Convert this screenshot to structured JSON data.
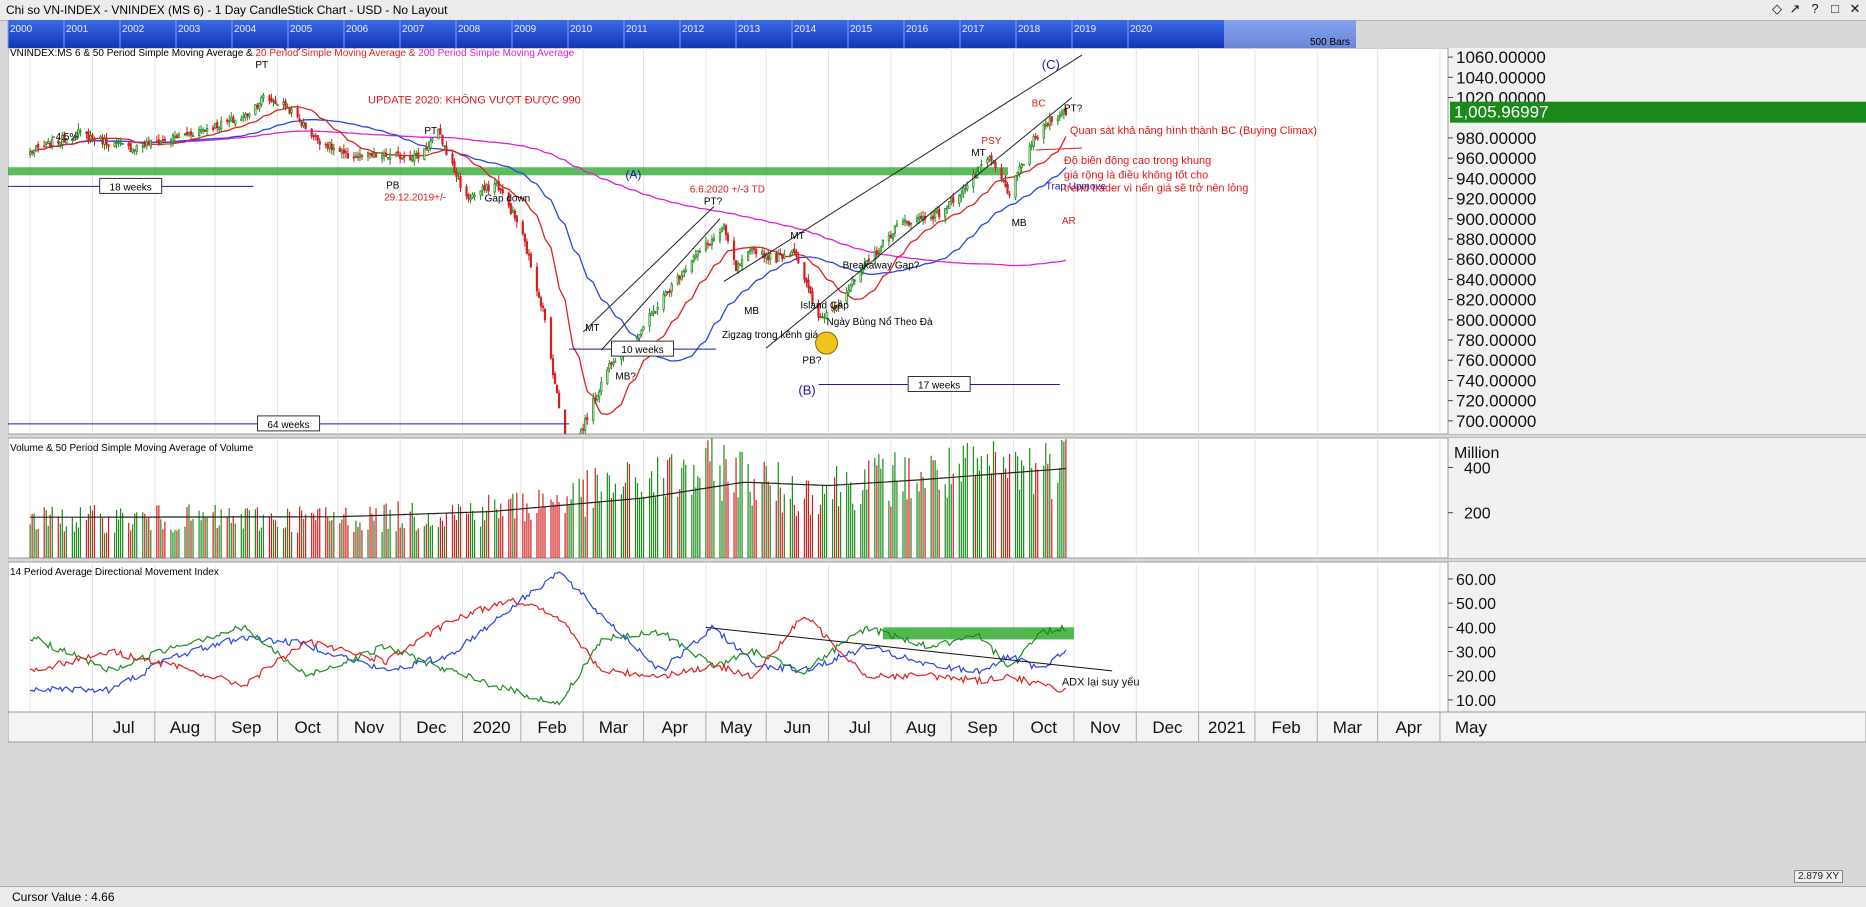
{
  "window": {
    "title": "Chi so VN-INDEX - VNINDEX (MS 6) - 1 Day CandleStick Chart - USD - No Layout",
    "controls": [
      "◇",
      "↗",
      "?",
      "□",
      "✕"
    ]
  },
  "navigator": {
    "years": [
      "2000",
      "2001",
      "2002",
      "2003",
      "2004",
      "2005",
      "2006",
      "2007",
      "2008",
      "2009",
      "2010",
      "2011",
      "2012",
      "2013",
      "2014",
      "2015",
      "2016",
      "2017",
      "2018",
      "2019",
      "2020"
    ],
    "bars_label": "500 Bars"
  },
  "status": {
    "cursor_value": "Cursor Value : 4.66",
    "badge": "2.879 XY"
  },
  "colors": {
    "up": "#1e8c1e",
    "down": "#d42020",
    "sma6": "#e02020",
    "sma50": "#2846e0",
    "sma200": "#e020d8",
    "annotation_red": "#e01818",
    "annotation_blue": "#1a1ab0",
    "zone": "#33aa33",
    "price_tag": "#1a8a1a"
  },
  "chart_data": [
    {
      "type": "candlestick",
      "title_parts": [
        {
          "text": "VNINDEX:MS 6 & 50 Period Simple Moving Average & ",
          "color": "#000000"
        },
        {
          "text": "20 Period Simple Moving Average & ",
          "color": "#e02020"
        },
        {
          "text": "200 Period Simple Moving Average",
          "color": "#e020d8"
        }
      ],
      "x_tick_labels": [
        "Jul",
        "Aug",
        "Sep",
        "Oct",
        "Nov",
        "Dec",
        "2020",
        "Feb",
        "Mar",
        "Apr",
        "May",
        "Jun",
        "Jul",
        "Aug",
        "Sep",
        "Oct",
        "Nov",
        "Dec",
        "2021",
        "Feb",
        "Mar",
        "Apr",
        "May"
      ],
      "y_tick_labels": [
        "1060.00000",
        "1040.00000",
        "1020.00000",
        "980.00000",
        "960.00000",
        "940.00000",
        "920.00000",
        "900.00000",
        "880.00000",
        "860.00000",
        "840.00000",
        "820.00000",
        "800.00000",
        "780.00000",
        "760.00000",
        "740.00000",
        "720.00000",
        "700.00000"
      ],
      "y_range": [
        687,
        1069
      ],
      "last_price": "1,005.96997",
      "price_anchors": [
        {
          "date": "2019-07-01",
          "close": 966
        },
        {
          "date": "2019-07-25",
          "close": 985
        },
        {
          "date": "2019-08-10",
          "close": 975
        },
        {
          "date": "2019-08-20",
          "close": 970
        },
        {
          "date": "2019-09-10",
          "close": 980
        },
        {
          "date": "2019-10-15",
          "close": 1000
        },
        {
          "date": "2019-10-25",
          "close": 1020
        },
        {
          "date": "2019-11-05",
          "close": 1012
        },
        {
          "date": "2019-11-20",
          "close": 980
        },
        {
          "date": "2019-12-05",
          "close": 962
        },
        {
          "date": "2019-12-20",
          "close": 962
        },
        {
          "date": "2020-01-10",
          "close": 962
        },
        {
          "date": "2020-01-20",
          "close": 985
        },
        {
          "date": "2020-02-03",
          "close": 920
        },
        {
          "date": "2020-02-18",
          "close": 935
        },
        {
          "date": "2020-03-01",
          "close": 890
        },
        {
          "date": "2020-03-12",
          "close": 810
        },
        {
          "date": "2020-03-24",
          "close": 665
        },
        {
          "date": "2020-03-31",
          "close": 690
        },
        {
          "date": "2020-04-15",
          "close": 760
        },
        {
          "date": "2020-04-25",
          "close": 775
        },
        {
          "date": "2020-05-10",
          "close": 820
        },
        {
          "date": "2020-05-25",
          "close": 860
        },
        {
          "date": "2020-06-10",
          "close": 890
        },
        {
          "date": "2020-06-16",
          "close": 850
        },
        {
          "date": "2020-06-25",
          "close": 870
        },
        {
          "date": "2020-07-05",
          "close": 860
        },
        {
          "date": "2020-07-15",
          "close": 870
        },
        {
          "date": "2020-07-27",
          "close": 800
        },
        {
          "date": "2020-08-05",
          "close": 815
        },
        {
          "date": "2020-08-20",
          "close": 855
        },
        {
          "date": "2020-09-05",
          "close": 895
        },
        {
          "date": "2020-09-25",
          "close": 905
        },
        {
          "date": "2020-10-10",
          "close": 935
        },
        {
          "date": "2020-10-20",
          "close": 960
        },
        {
          "date": "2020-10-30",
          "close": 925
        },
        {
          "date": "2020-11-10",
          "close": 975
        },
        {
          "date": "2020-11-20",
          "close": 1000
        },
        {
          "date": "2020-11-27",
          "close": 1006
        }
      ],
      "annotations": [
        {
          "text": "(B)",
          "date": "2019-11-03",
          "price": 1070,
          "color": "#1a1ab0",
          "size": 16
        },
        {
          "text": "PT",
          "date": "2019-10-21",
          "price": 1049,
          "color": "#000000",
          "size": 10
        },
        {
          "text": "UPDATE 2020: KHÔNG VƯỢT ĐƯỢC 990",
          "date": "2019-12-16",
          "price": 1014,
          "color": "#e01818",
          "size": 11
        },
        {
          "text": "-4.5%",
          "date": "2019-07-12",
          "price": 978,
          "color": "#000000",
          "size": 10
        },
        {
          "text": "PT",
          "date": "2020-01-13",
          "price": 984,
          "color": "#000000",
          "size": 10
        },
        {
          "text": "PB",
          "date": "2019-12-25",
          "price": 930,
          "color": "#000000",
          "size": 10
        },
        {
          "text": "29.12.2019+/-",
          "date": "2019-12-24",
          "price": 918,
          "color": "#e01818",
          "size": 10
        },
        {
          "text": "Gap down",
          "date": "2020-02-12",
          "price": 917,
          "color": "#000000",
          "size": 10
        },
        {
          "text": "(A)",
          "date": "2020-04-22",
          "price": 940,
          "color": "#1a1ab0",
          "size": 12
        },
        {
          "text": "6.6.2020 +/-3 TD",
          "date": "2020-05-24",
          "price": 926,
          "color": "#e01818",
          "size": 10
        },
        {
          "text": "PT?",
          "date": "2020-05-31",
          "price": 914,
          "color": "#000000",
          "size": 10
        },
        {
          "text": "MT",
          "date": "2020-04-02",
          "price": 789,
          "color": "#000000",
          "size": 10
        },
        {
          "text": "MB?",
          "date": "2020-04-17",
          "price": 741,
          "color": "#000000",
          "size": 10
        },
        {
          "text": "MT",
          "date": "2020-07-13",
          "price": 880,
          "color": "#000000",
          "size": 10
        },
        {
          "text": "MB",
          "date": "2020-06-20",
          "price": 806,
          "color": "#000000",
          "size": 10
        },
        {
          "text": "Zigzag trong kênh giá",
          "date": "2020-06-09",
          "price": 782,
          "color": "#000000",
          "size": 10
        },
        {
          "text": "Island Gap",
          "date": "2020-07-18",
          "price": 811,
          "color": "#000000",
          "size": 10
        },
        {
          "text": "Ngày Bùng Nổ Theo Đà",
          "date": "2020-07-31",
          "price": 795,
          "color": "#000000",
          "size": 10
        },
        {
          "text": "PB?",
          "date": "2020-07-19",
          "price": 757,
          "color": "#000000",
          "size": 10
        },
        {
          "text": "(B)",
          "date": "2020-07-17",
          "price": 726,
          "color": "#1a1ab0",
          "size": 13
        },
        {
          "text": "Breakaway Gap?",
          "date": "2020-08-08",
          "price": 851,
          "color": "#000000",
          "size": 10
        },
        {
          "text": "PSY",
          "date": "2020-10-16",
          "price": 974,
          "color": "#e01818",
          "size": 10
        },
        {
          "text": "MT",
          "date": "2020-10-11",
          "price": 962,
          "color": "#000000",
          "size": 10
        },
        {
          "text": "(C)",
          "date": "2020-11-15",
          "price": 1048,
          "color": "#1a1ab0",
          "size": 13
        },
        {
          "text": "BC",
          "date": "2020-11-10",
          "price": 1011,
          "color": "#e01818",
          "size": 10
        },
        {
          "text": "PT?",
          "date": "2020-11-26",
          "price": 1006,
          "color": "#000000",
          "size": 10
        },
        {
          "text": "MB",
          "date": "2020-10-31",
          "price": 893,
          "color": "#000000",
          "size": 10
        },
        {
          "text": "Trap Upmove",
          "date": "2020-11-17",
          "price": 929,
          "color": "#1a1ab0",
          "size": 10
        },
        {
          "text": "AR",
          "date": "2020-11-25",
          "price": 895,
          "color": "#e01818",
          "size": 10
        },
        {
          "text": "Quan sát khả năng hình thành BC (Buying Climax)",
          "date": "2020-11-29",
          "price": 984,
          "color": "#e01818",
          "size": 11
        },
        {
          "text": "Độ biến động cao trong khung",
          "date": "2020-11-26",
          "price": 954,
          "color": "#e01818",
          "size": 11
        },
        {
          "text": "giá rộng là điều không tốt cho",
          "date": "2020-11-26",
          "price": 940,
          "color": "#e01818",
          "size": 11
        },
        {
          "text": "trend trader vì nến giá sẽ trở nên lỏng",
          "date": "2020-11-26",
          "price": 927,
          "color": "#e01818",
          "size": 11
        }
      ],
      "duration_boxes": [
        {
          "text": "18 weeks",
          "from": "2019-06-20",
          "to": "2019-10-20",
          "price": 932
        },
        {
          "text": "64 weeks",
          "from": "2019-06-20",
          "to": "2020-03-25",
          "price": 697
        },
        {
          "text": "10 weeks",
          "from": "2020-03-25",
          "to": "2020-06-06",
          "price": 771
        },
        {
          "text": "17 weeks",
          "from": "2020-07-27",
          "to": "2020-11-24",
          "price": 736
        }
      ]
    },
    {
      "type": "volume",
      "title": "Volume & 50 Period Simple Moving Average of Volume",
      "unit_label": "Million",
      "y_tick_labels": [
        "400",
        "200"
      ],
      "y_range": [
        0,
        530
      ],
      "volume_anchors": [
        {
          "date": "2019-07-01",
          "volume": 180
        },
        {
          "date": "2019-12-15",
          "volume": 185
        },
        {
          "date": "2020-01-15",
          "volume": 200
        },
        {
          "date": "2020-03-01",
          "volume": 240
        },
        {
          "date": "2020-04-20",
          "volume": 330
        },
        {
          "date": "2020-06-10",
          "volume": 420
        },
        {
          "date": "2020-07-15",
          "volume": 300
        },
        {
          "date": "2020-08-20",
          "volume": 360
        },
        {
          "date": "2020-10-01",
          "volume": 390
        },
        {
          "date": "2020-11-27",
          "volume": 440
        }
      ],
      "sma_anchors": [
        {
          "date": "2019-07-01",
          "value": 180
        },
        {
          "date": "2019-12-01",
          "value": 182
        },
        {
          "date": "2020-02-15",
          "value": 205
        },
        {
          "date": "2020-05-01",
          "value": 265
        },
        {
          "date": "2020-06-20",
          "value": 335
        },
        {
          "date": "2020-08-01",
          "value": 320
        },
        {
          "date": "2020-09-15",
          "value": 345
        },
        {
          "date": "2020-11-27",
          "value": 395
        }
      ]
    },
    {
      "type": "line",
      "title": "14 Period Average Directional Movement Index",
      "y_tick_labels": [
        "60.00",
        "50.00",
        "40.00",
        "30.00",
        "20.00",
        "10.00"
      ],
      "y_range": [
        5,
        67
      ],
      "annotation": "ADX lại suy yếu",
      "series": [
        {
          "key": "adx",
          "color": "#2846e0",
          "points": [
            {
              "date": "2019-07-01",
              "value": 15
            },
            {
              "date": "2019-08-10",
              "value": 14
            },
            {
              "date": "2019-09-10",
              "value": 28
            },
            {
              "date": "2019-10-15",
              "value": 36
            },
            {
              "date": "2019-11-15",
              "value": 33
            },
            {
              "date": "2019-12-25",
              "value": 22
            },
            {
              "date": "2020-01-25",
              "value": 28
            },
            {
              "date": "2020-02-25",
              "value": 48
            },
            {
              "date": "2020-03-20",
              "value": 63
            },
            {
              "date": "2020-04-10",
              "value": 45
            },
            {
              "date": "2020-05-10",
              "value": 22
            },
            {
              "date": "2020-06-05",
              "value": 40
            },
            {
              "date": "2020-06-25",
              "value": 25
            },
            {
              "date": "2020-07-20",
              "value": 22
            },
            {
              "date": "2020-08-20",
              "value": 32
            },
            {
              "date": "2020-09-20",
              "value": 24
            },
            {
              "date": "2020-10-15",
              "value": 22
            },
            {
              "date": "2020-10-30",
              "value": 28
            },
            {
              "date": "2020-11-15",
              "value": 22
            },
            {
              "date": "2020-11-27",
              "value": 30
            }
          ]
        },
        {
          "key": "plus_di",
          "color": "#1e8c1e",
          "points": [
            {
              "date": "2019-07-01",
              "value": 36
            },
            {
              "date": "2019-08-10",
              "value": 22
            },
            {
              "date": "2019-09-10",
              "value": 32
            },
            {
              "date": "2019-10-15",
              "value": 40
            },
            {
              "date": "2019-11-15",
              "value": 20
            },
            {
              "date": "2019-12-25",
              "value": 32
            },
            {
              "date": "2020-01-25",
              "value": 22
            },
            {
              "date": "2020-02-25",
              "value": 14
            },
            {
              "date": "2020-03-20",
              "value": 8
            },
            {
              "date": "2020-04-10",
              "value": 35
            },
            {
              "date": "2020-05-10",
              "value": 38
            },
            {
              "date": "2020-06-05",
              "value": 24
            },
            {
              "date": "2020-06-25",
              "value": 30
            },
            {
              "date": "2020-07-20",
              "value": 22
            },
            {
              "date": "2020-08-20",
              "value": 40
            },
            {
              "date": "2020-09-20",
              "value": 32
            },
            {
              "date": "2020-10-15",
              "value": 36
            },
            {
              "date": "2020-10-30",
              "value": 24
            },
            {
              "date": "2020-11-15",
              "value": 38
            },
            {
              "date": "2020-11-27",
              "value": 40
            }
          ]
        },
        {
          "key": "minus_di",
          "color": "#e02020",
          "points": [
            {
              "date": "2019-07-01",
              "value": 22
            },
            {
              "date": "2019-08-10",
              "value": 30
            },
            {
              "date": "2019-09-10",
              "value": 24
            },
            {
              "date": "2019-10-15",
              "value": 16
            },
            {
              "date": "2019-11-15",
              "value": 34
            },
            {
              "date": "2019-12-25",
              "value": 26
            },
            {
              "date": "2020-01-25",
              "value": 42
            },
            {
              "date": "2020-02-25",
              "value": 52
            },
            {
              "date": "2020-03-20",
              "value": 44
            },
            {
              "date": "2020-04-10",
              "value": 22
            },
            {
              "date": "2020-05-10",
              "value": 20
            },
            {
              "date": "2020-06-05",
              "value": 24
            },
            {
              "date": "2020-06-25",
              "value": 20
            },
            {
              "date": "2020-07-20",
              "value": 45
            },
            {
              "date": "2020-08-20",
              "value": 20
            },
            {
              "date": "2020-09-20",
              "value": 20
            },
            {
              "date": "2020-10-15",
              "value": 18
            },
            {
              "date": "2020-10-30",
              "value": 20
            },
            {
              "date": "2020-11-15",
              "value": 16
            },
            {
              "date": "2020-11-27",
              "value": 14
            }
          ]
        }
      ]
    }
  ]
}
